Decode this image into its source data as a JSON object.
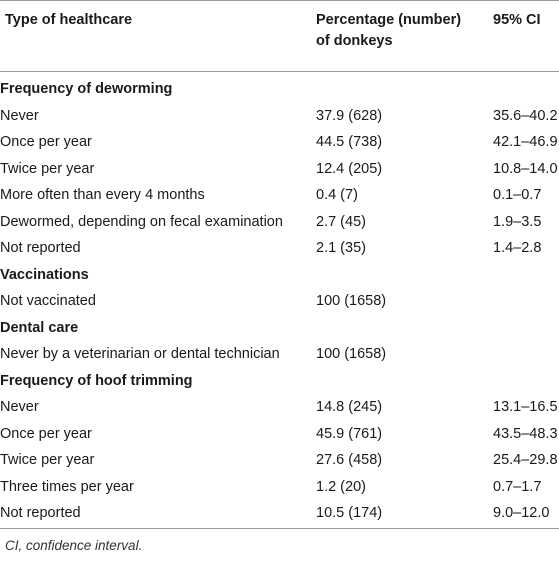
{
  "header": {
    "col1": "Type of healthcare",
    "col2": "Percentage (number) of donkeys",
    "col3": "95% CI"
  },
  "rows": [
    {
      "type": "section",
      "label": "Frequency of deworming",
      "pct": "",
      "ci": ""
    },
    {
      "type": "data",
      "label": "Never",
      "pct": "37.9 (628)",
      "ci": "35.6–40.2"
    },
    {
      "type": "data",
      "label": "Once per year",
      "pct": "44.5 (738)",
      "ci": "42.1–46.9"
    },
    {
      "type": "data",
      "label": "Twice per year",
      "pct": "12.4 (205)",
      "ci": "10.8–14.0"
    },
    {
      "type": "data",
      "label": "More often than every 4 months",
      "pct": "0.4 (7)",
      "ci": "0.1–0.7"
    },
    {
      "type": "data",
      "label": "Dewormed, depending on fecal examination",
      "pct": "2.7 (45)",
      "ci": "1.9–3.5"
    },
    {
      "type": "data",
      "label": "Not reported",
      "pct": "2.1 (35)",
      "ci": "1.4–2.8"
    },
    {
      "type": "section",
      "label": "Vaccinations",
      "pct": "",
      "ci": ""
    },
    {
      "type": "data",
      "label": "Not vaccinated",
      "pct": "100 (1658)",
      "ci": ""
    },
    {
      "type": "section",
      "label": "Dental care",
      "pct": "",
      "ci": ""
    },
    {
      "type": "data",
      "label": "Never by a veterinarian or dental technician",
      "pct": "100 (1658)",
      "ci": ""
    },
    {
      "type": "section",
      "label": "Frequency of hoof trimming",
      "pct": "",
      "ci": ""
    },
    {
      "type": "data",
      "label": "Never",
      "pct": "14.8 (245)",
      "ci": "13.1–16.5"
    },
    {
      "type": "data",
      "label": "Once per year",
      "pct": "45.9 (761)",
      "ci": "43.5–48.3"
    },
    {
      "type": "data",
      "label": "Twice per year",
      "pct": "27.6 (458)",
      "ci": "25.4–29.8"
    },
    {
      "type": "data",
      "label": "Three times per year",
      "pct": "1.2 (20)",
      "ci": "0.7–1.7"
    },
    {
      "type": "data",
      "label": "Not reported",
      "pct": "10.5 (174)",
      "ci": "9.0–12.0"
    }
  ],
  "footnote": "CI, confidence interval."
}
